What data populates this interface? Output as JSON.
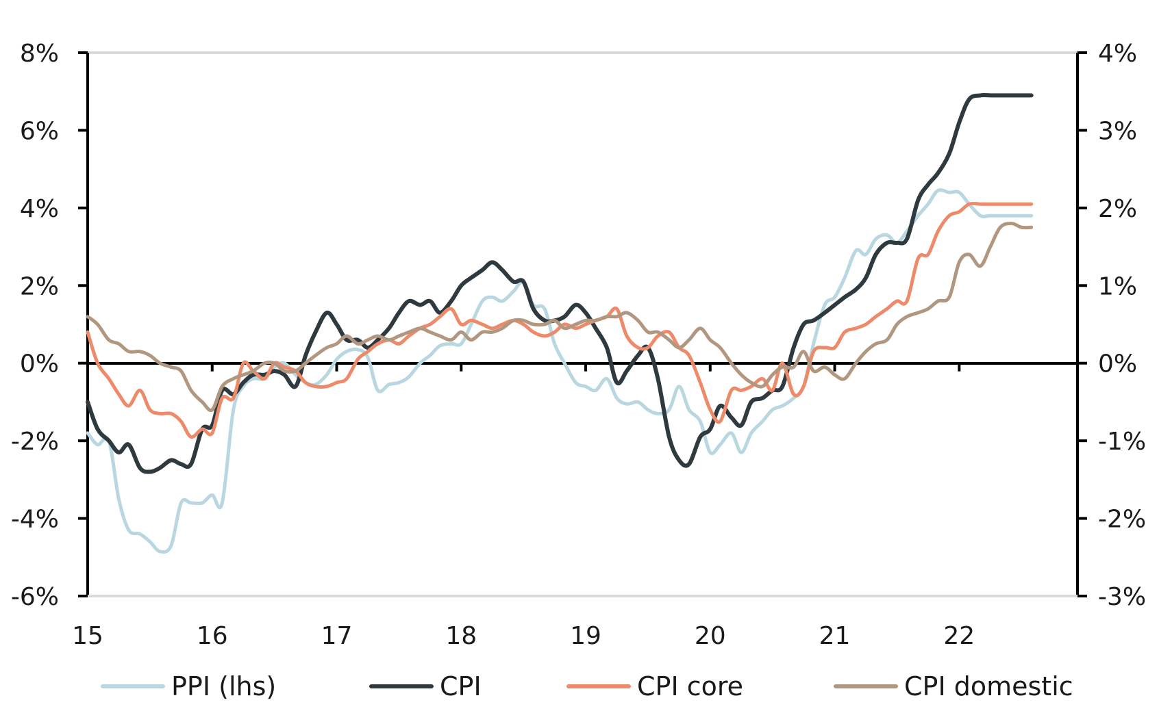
{
  "chart_data": {
    "type": "line",
    "title": "",
    "xlabel": "",
    "ylabel": "",
    "xlim": [
      15.0,
      22.95
    ],
    "y_left": {
      "lim": [
        -6,
        8
      ],
      "ticks": [
        -6,
        -4,
        -2,
        0,
        2,
        4,
        6,
        8
      ],
      "tick_labels": [
        "-6%",
        "-4%",
        "-2%",
        "0%",
        "2%",
        "4%",
        "6%",
        "8%"
      ]
    },
    "y_right": {
      "lim": [
        -3,
        4
      ],
      "ticks": [
        -3,
        -2,
        -1,
        0,
        1,
        2,
        3,
        4
      ],
      "tick_labels": [
        "-3%",
        "-2%",
        "-1%",
        "0%",
        "1%",
        "2%",
        "3%",
        "4%"
      ]
    },
    "x_ticks": [
      15,
      16,
      17,
      18,
      19,
      20,
      21,
      22
    ],
    "x_tick_labels": [
      "15",
      "16",
      "17",
      "18",
      "19",
      "20",
      "21",
      "22"
    ],
    "grid": "top border only",
    "legend_position": "bottom",
    "series": [
      {
        "name": "PPI (lhs)",
        "axis": "left",
        "color": "#b9d7e1",
        "width": 5,
        "x": [
          15.0,
          15.08,
          15.17,
          15.25,
          15.33,
          15.42,
          15.5,
          15.58,
          15.67,
          15.75,
          15.83,
          15.92,
          16.0,
          16.08,
          16.17,
          16.25,
          16.33,
          16.42,
          16.5,
          16.58,
          16.67,
          16.75,
          16.83,
          16.92,
          17.0,
          17.08,
          17.17,
          17.25,
          17.33,
          17.42,
          17.5,
          17.58,
          17.67,
          17.75,
          17.83,
          17.92,
          18.0,
          18.08,
          18.17,
          18.25,
          18.33,
          18.42,
          18.5,
          18.58,
          18.67,
          18.75,
          18.83,
          18.92,
          19.0,
          19.08,
          19.17,
          19.25,
          19.33,
          19.42,
          19.5,
          19.58,
          19.67,
          19.75,
          19.83,
          19.92,
          20.0,
          20.08,
          20.17,
          20.25,
          20.33,
          20.42,
          20.5,
          20.58,
          20.67,
          20.75,
          20.83,
          20.92,
          21.0,
          21.08,
          21.17,
          21.25,
          21.33,
          21.42,
          21.5,
          21.58,
          21.67,
          21.75,
          21.83,
          21.92,
          22.0,
          22.08,
          22.17,
          22.25,
          22.33,
          22.42,
          22.5,
          22.58
        ],
        "y": [
          -1.8,
          -2.1,
          -2.0,
          -3.5,
          -4.3,
          -4.4,
          -4.6,
          -4.85,
          -4.7,
          -3.6,
          -3.6,
          -3.6,
          -3.4,
          -3.6,
          -1.2,
          -0.6,
          -0.4,
          -0.4,
          -0.1,
          0.0,
          -0.3,
          -0.5,
          -0.55,
          -0.3,
          0.1,
          0.3,
          0.35,
          0.15,
          -0.7,
          -0.55,
          -0.5,
          -0.35,
          0.0,
          0.2,
          0.45,
          0.5,
          0.5,
          1.0,
          1.6,
          1.7,
          1.6,
          1.85,
          2.1,
          1.5,
          1.4,
          0.5,
          0.0,
          -0.5,
          -0.6,
          -0.7,
          -0.4,
          -0.9,
          -1.05,
          -1.0,
          -1.2,
          -1.3,
          -1.2,
          -0.6,
          -1.2,
          -1.5,
          -2.3,
          -2.1,
          -1.8,
          -2.3,
          -1.8,
          -1.5,
          -1.2,
          -1.1,
          -0.9,
          -0.6,
          0.5,
          1.5,
          1.7,
          2.2,
          2.9,
          2.8,
          3.2,
          3.3,
          3.1,
          3.4,
          3.8,
          4.1,
          4.45,
          4.4,
          4.4,
          4.1,
          3.8,
          3.8,
          3.8,
          3.8,
          3.8,
          3.8
        ]
      },
      {
        "name": "CPI",
        "axis": "right",
        "color": "#2e3a40",
        "width": 6,
        "x": [
          15.0,
          15.08,
          15.17,
          15.25,
          15.33,
          15.42,
          15.5,
          15.58,
          15.67,
          15.75,
          15.83,
          15.92,
          16.0,
          16.08,
          16.17,
          16.25,
          16.33,
          16.42,
          16.5,
          16.58,
          16.67,
          16.75,
          16.83,
          16.92,
          17.0,
          17.08,
          17.17,
          17.25,
          17.33,
          17.42,
          17.5,
          17.58,
          17.67,
          17.75,
          17.83,
          17.92,
          18.0,
          18.08,
          18.17,
          18.25,
          18.33,
          18.42,
          18.5,
          18.58,
          18.67,
          18.75,
          18.83,
          18.92,
          19.0,
          19.08,
          19.17,
          19.25,
          19.33,
          19.42,
          19.5,
          19.58,
          19.67,
          19.75,
          19.83,
          19.92,
          20.0,
          20.08,
          20.17,
          20.25,
          20.33,
          20.42,
          20.5,
          20.58,
          20.67,
          20.75,
          20.83,
          20.92,
          21.0,
          21.08,
          21.17,
          21.25,
          21.33,
          21.42,
          21.5,
          21.58,
          21.67,
          21.75,
          21.83,
          21.92,
          22.0,
          22.08,
          22.17,
          22.25,
          22.33,
          22.42,
          22.5,
          22.58
        ],
        "y": [
          -0.5,
          -0.85,
          -1.0,
          -1.15,
          -1.05,
          -1.35,
          -1.4,
          -1.35,
          -1.25,
          -1.3,
          -1.3,
          -0.85,
          -0.8,
          -0.35,
          -0.4,
          -0.25,
          -0.15,
          -0.15,
          -0.1,
          -0.15,
          -0.3,
          0.1,
          0.4,
          0.65,
          0.5,
          0.3,
          0.3,
          0.2,
          0.3,
          0.45,
          0.65,
          0.8,
          0.75,
          0.8,
          0.65,
          0.8,
          1.0,
          1.1,
          1.2,
          1.3,
          1.2,
          1.05,
          1.05,
          0.7,
          0.55,
          0.55,
          0.6,
          0.75,
          0.65,
          0.45,
          0.2,
          -0.25,
          -0.1,
          0.1,
          0.2,
          -0.2,
          -0.95,
          -1.25,
          -1.3,
          -0.95,
          -0.85,
          -0.55,
          -0.7,
          -0.8,
          -0.5,
          -0.45,
          -0.35,
          -0.3,
          0.2,
          0.5,
          0.55,
          0.65,
          0.75,
          0.85,
          0.95,
          1.1,
          1.4,
          1.55,
          1.55,
          1.6,
          2.1,
          2.3,
          2.45,
          2.7,
          3.1,
          3.4,
          3.45,
          3.45,
          3.45,
          3.45,
          3.45,
          3.45
        ]
      },
      {
        "name": "CPI core",
        "axis": "right",
        "color": "#ec8a6a",
        "width": 5,
        "x": [
          15.0,
          15.08,
          15.17,
          15.25,
          15.33,
          15.42,
          15.5,
          15.58,
          15.67,
          15.75,
          15.83,
          15.92,
          16.0,
          16.08,
          16.17,
          16.25,
          16.33,
          16.42,
          16.5,
          16.58,
          16.67,
          16.75,
          16.83,
          16.92,
          17.0,
          17.08,
          17.17,
          17.25,
          17.33,
          17.42,
          17.5,
          17.58,
          17.67,
          17.75,
          17.83,
          17.92,
          18.0,
          18.08,
          18.17,
          18.25,
          18.33,
          18.42,
          18.5,
          18.58,
          18.67,
          18.75,
          18.83,
          18.92,
          19.0,
          19.08,
          19.17,
          19.25,
          19.33,
          19.42,
          19.5,
          19.58,
          19.67,
          19.75,
          19.83,
          19.92,
          20.0,
          20.08,
          20.17,
          20.25,
          20.33,
          20.42,
          20.5,
          20.58,
          20.67,
          20.75,
          20.83,
          20.92,
          21.0,
          21.08,
          21.17,
          21.25,
          21.33,
          21.42,
          21.5,
          21.58,
          21.67,
          21.75,
          21.83,
          21.92,
          22.0,
          22.08,
          22.17,
          22.25,
          22.33,
          22.42,
          22.5,
          22.58
        ],
        "y": [
          0.4,
          0.0,
          -0.2,
          -0.4,
          -0.55,
          -0.35,
          -0.6,
          -0.65,
          -0.65,
          -0.75,
          -0.95,
          -0.85,
          -0.9,
          -0.45,
          -0.45,
          0.0,
          -0.1,
          -0.2,
          0.0,
          -0.05,
          -0.1,
          -0.25,
          -0.3,
          -0.3,
          -0.25,
          -0.2,
          0.05,
          0.15,
          0.25,
          0.3,
          0.25,
          0.35,
          0.45,
          0.5,
          0.6,
          0.7,
          0.5,
          0.55,
          0.5,
          0.45,
          0.5,
          0.55,
          0.5,
          0.4,
          0.35,
          0.4,
          0.5,
          0.45,
          0.5,
          0.55,
          0.6,
          0.7,
          0.35,
          0.2,
          0.2,
          0.35,
          0.4,
          0.2,
          0.1,
          -0.25,
          -0.6,
          -0.75,
          -0.35,
          -0.35,
          -0.3,
          -0.2,
          -0.35,
          0.0,
          -0.4,
          -0.3,
          0.15,
          0.2,
          0.2,
          0.4,
          0.45,
          0.5,
          0.6,
          0.7,
          0.8,
          0.8,
          1.35,
          1.4,
          1.7,
          1.9,
          1.95,
          2.05,
          2.05,
          2.05,
          2.05,
          2.05,
          2.05,
          2.05
        ]
      },
      {
        "name": "CPI domestic",
        "axis": "right",
        "color": "#b29780",
        "width": 5,
        "x": [
          15.0,
          15.08,
          15.17,
          15.25,
          15.33,
          15.42,
          15.5,
          15.58,
          15.67,
          15.75,
          15.83,
          15.92,
          16.0,
          16.08,
          16.17,
          16.25,
          16.33,
          16.42,
          16.5,
          16.58,
          16.67,
          16.75,
          16.83,
          16.92,
          17.0,
          17.08,
          17.17,
          17.25,
          17.33,
          17.42,
          17.5,
          17.58,
          17.67,
          17.75,
          17.83,
          17.92,
          18.0,
          18.08,
          18.17,
          18.25,
          18.33,
          18.42,
          18.5,
          18.58,
          18.67,
          18.75,
          18.83,
          18.92,
          19.0,
          19.08,
          19.17,
          19.25,
          19.33,
          19.42,
          19.5,
          19.58,
          19.67,
          19.75,
          19.83,
          19.92,
          20.0,
          20.08,
          20.17,
          20.25,
          20.33,
          20.42,
          20.5,
          20.58,
          20.67,
          20.75,
          20.83,
          20.92,
          21.0,
          21.08,
          21.17,
          21.25,
          21.33,
          21.42,
          21.5,
          21.58,
          21.67,
          21.75,
          21.83,
          21.92,
          22.0,
          22.08,
          22.17,
          22.25,
          22.33,
          22.42,
          22.5,
          22.58
        ],
        "y": [
          0.6,
          0.5,
          0.3,
          0.25,
          0.15,
          0.15,
          0.1,
          0.0,
          -0.05,
          -0.1,
          -0.35,
          -0.5,
          -0.6,
          -0.3,
          -0.2,
          -0.15,
          -0.1,
          0.0,
          0.0,
          -0.1,
          -0.1,
          0.0,
          0.1,
          0.2,
          0.25,
          0.35,
          0.25,
          0.3,
          0.35,
          0.3,
          0.35,
          0.4,
          0.45,
          0.4,
          0.35,
          0.3,
          0.4,
          0.3,
          0.4,
          0.4,
          0.45,
          0.55,
          0.55,
          0.5,
          0.5,
          0.55,
          0.45,
          0.5,
          0.55,
          0.55,
          0.6,
          0.6,
          0.65,
          0.55,
          0.4,
          0.4,
          0.3,
          0.2,
          0.3,
          0.45,
          0.3,
          0.2,
          0.0,
          -0.15,
          -0.25,
          -0.3,
          -0.15,
          -0.05,
          -0.05,
          0.15,
          -0.1,
          -0.05,
          -0.15,
          -0.2,
          0.0,
          0.15,
          0.25,
          0.3,
          0.5,
          0.6,
          0.65,
          0.7,
          0.8,
          0.85,
          1.3,
          1.4,
          1.25,
          1.5,
          1.75,
          1.8,
          1.75,
          1.75
        ]
      }
    ]
  }
}
